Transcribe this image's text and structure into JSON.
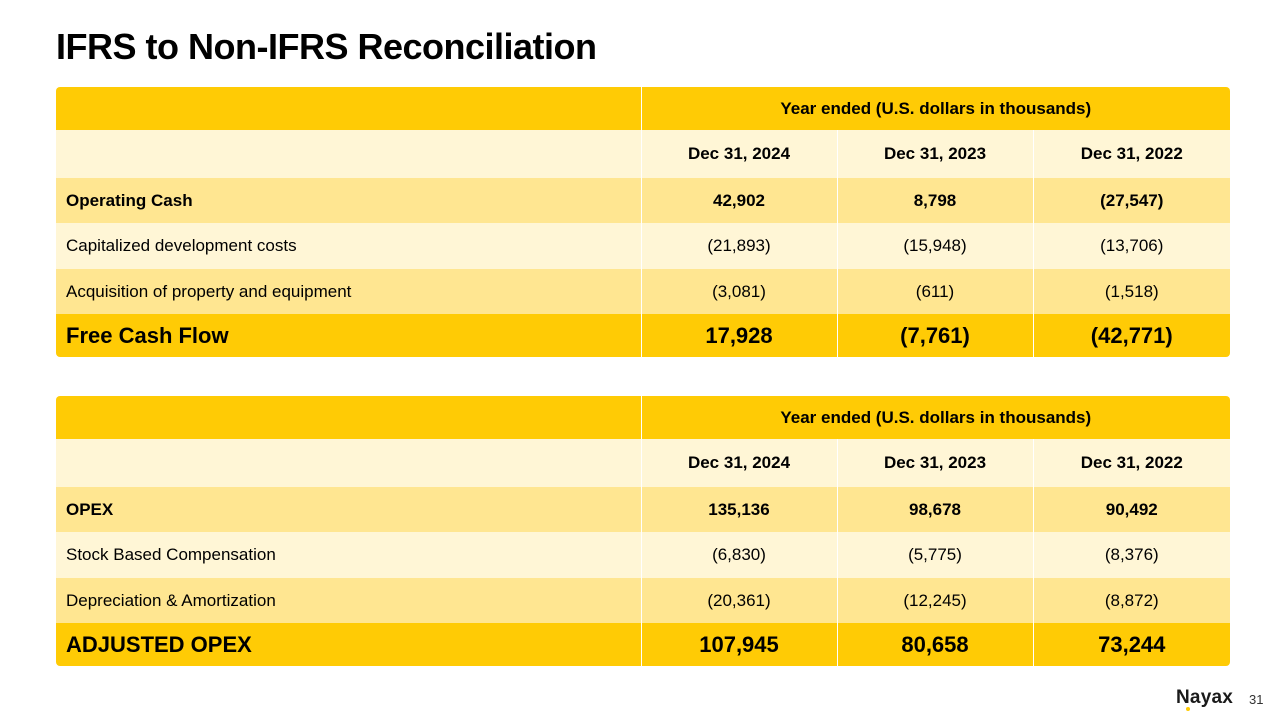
{
  "page": {
    "title": "IFRS to Non-IFRS Reconciliation",
    "page_number": "31",
    "logo_text": "Nayax"
  },
  "colors": {
    "header": "#FFCB05",
    "row_light": "#FFF6D6",
    "row_mid": "#FFE691",
    "total": "#FFCB05"
  },
  "tables": [
    {
      "header": "Year ended (U.S. dollars in thousands)",
      "columns": [
        "Dec 31, 2024",
        "Dec 31, 2023",
        "Dec 31, 2022"
      ],
      "rows": [
        {
          "label": "Operating Cash",
          "values": [
            "42,902",
            "8,798",
            "(27,547)"
          ]
        },
        {
          "label": "Capitalized development costs",
          "values": [
            "(21,893)",
            "(15,948)",
            "(13,706)"
          ]
        },
        {
          "label": "Acquisition of property and equipment",
          "values": [
            "(3,081)",
            "(611)",
            "(1,518)"
          ]
        }
      ],
      "total": {
        "label": "Free Cash Flow",
        "values": [
          "17,928",
          "(7,761)",
          "(42,771)"
        ]
      }
    },
    {
      "header": "Year ended (U.S. dollars in thousands)",
      "columns": [
        "Dec 31, 2024",
        "Dec 31, 2023",
        "Dec 31, 2022"
      ],
      "rows": [
        {
          "label": "OPEX",
          "values": [
            "135,136",
            "98,678",
            "90,492"
          ]
        },
        {
          "label": "Stock Based Compensation",
          "values": [
            "(6,830)",
            "(5,775)",
            "(8,376)"
          ]
        },
        {
          "label": "Depreciation & Amortization",
          "values": [
            "(20,361)",
            "(12,245)",
            "(8,872)"
          ]
        }
      ],
      "total": {
        "label": "ADJUSTED OPEX",
        "values": [
          "107,945",
          "80,658",
          "73,244"
        ]
      }
    }
  ]
}
